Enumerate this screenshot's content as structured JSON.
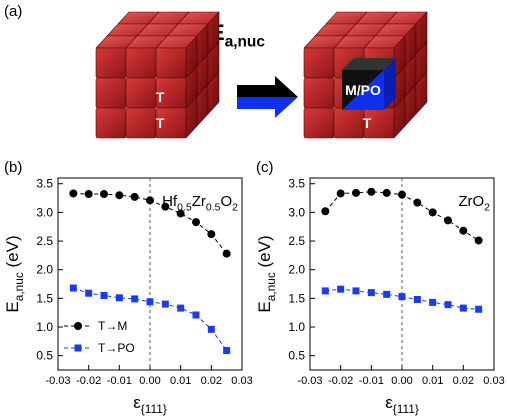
{
  "panel_a": {
    "label": "(a)",
    "title": [
      {
        "text": "E"
      },
      {
        "text": "a,nuc",
        "sub": true
      }
    ],
    "cube_labels": [
      "T",
      "T",
      "M/PO",
      "T"
    ]
  },
  "chart_data": [
    {
      "type": "line",
      "panel_label": "(b)",
      "annotation": [
        {
          "text": "Hf"
        },
        {
          "text": "0.5",
          "sub": true
        },
        {
          "text": "Zr"
        },
        {
          "text": "0.5",
          "sub": true
        },
        {
          "text": "O"
        },
        {
          "text": "2",
          "sub": true
        }
      ],
      "x": [
        -0.025,
        -0.02,
        -0.015,
        -0.01,
        -0.005,
        0,
        0.005,
        0.01,
        0.015,
        0.02,
        0.025
      ],
      "series": [
        {
          "name": "T→M",
          "color": "#000000",
          "marker": "circle",
          "values": [
            3.33,
            3.32,
            3.32,
            3.3,
            3.27,
            3.21,
            3.1,
            2.98,
            2.83,
            2.62,
            2.28
          ]
        },
        {
          "name": "T→PO",
          "color": "#1a3cf0",
          "marker": "square",
          "values": [
            1.68,
            1.59,
            1.55,
            1.51,
            1.49,
            1.44,
            1.4,
            1.33,
            1.21,
            0.96,
            0.59
          ]
        }
      ],
      "xlim": [
        -0.03,
        0.03
      ],
      "xticks": [
        -0.03,
        -0.02,
        -0.01,
        {
          "value": 0,
          "label": "0.00"
        },
        0.01,
        0.02,
        0.03
      ],
      "ylim": [
        0.25,
        3.6
      ],
      "yticks": [
        0.5,
        {
          "value": 1,
          "label": "1.0"
        },
        1.5,
        {
          "value": 2,
          "label": "2.0"
        },
        2.5,
        {
          "value": 3,
          "label": "3.0"
        },
        3.5
      ],
      "xlabel": [
        {
          "text": "ε"
        },
        {
          "text": "{111}",
          "sub": true
        }
      ],
      "ylabel": [
        {
          "text": "E"
        },
        {
          "text": "a,nuc",
          "sub": true
        },
        {
          "text": " (eV)"
        }
      ],
      "legend": "lower left",
      "reference_x": 0
    },
    {
      "type": "line",
      "panel_label": "(c)",
      "annotation": [
        {
          "text": "ZrO"
        },
        {
          "text": "2",
          "sub": true
        }
      ],
      "x": [
        -0.025,
        -0.02,
        -0.015,
        -0.01,
        -0.005,
        0,
        0.005,
        0.01,
        0.015,
        0.02,
        0.025
      ],
      "series": [
        {
          "color": "#000000",
          "marker": "circle",
          "values": [
            3.02,
            3.33,
            3.34,
            3.36,
            3.34,
            3.31,
            3.17,
            3.0,
            2.86,
            2.68,
            2.51
          ]
        },
        {
          "color": "#1a3cf0",
          "marker": "square",
          "values": [
            1.63,
            1.66,
            1.63,
            1.6,
            1.57,
            1.53,
            1.48,
            1.43,
            1.39,
            1.33,
            1.31
          ]
        }
      ],
      "xlim": [
        -0.03,
        0.03
      ],
      "xticks": [
        -0.03,
        -0.02,
        -0.01,
        {
          "value": 0,
          "label": "0.00"
        },
        0.01,
        0.02,
        0.03
      ],
      "ylim": [
        0.25,
        3.6
      ],
      "yticks": [
        0.5,
        {
          "value": 1,
          "label": "1.0"
        },
        1.5,
        {
          "value": 2,
          "label": "2.0"
        },
        2.5,
        {
          "value": 3,
          "label": "3.0"
        },
        3.5
      ],
      "xlabel": [
        {
          "text": "ε"
        },
        {
          "text": "{111}",
          "sub": true
        }
      ],
      "ylabel": [
        {
          "text": "E"
        },
        {
          "text": "a,nuc",
          "sub": true
        },
        {
          "text": " (eV)"
        }
      ],
      "reference_x": 0
    }
  ]
}
